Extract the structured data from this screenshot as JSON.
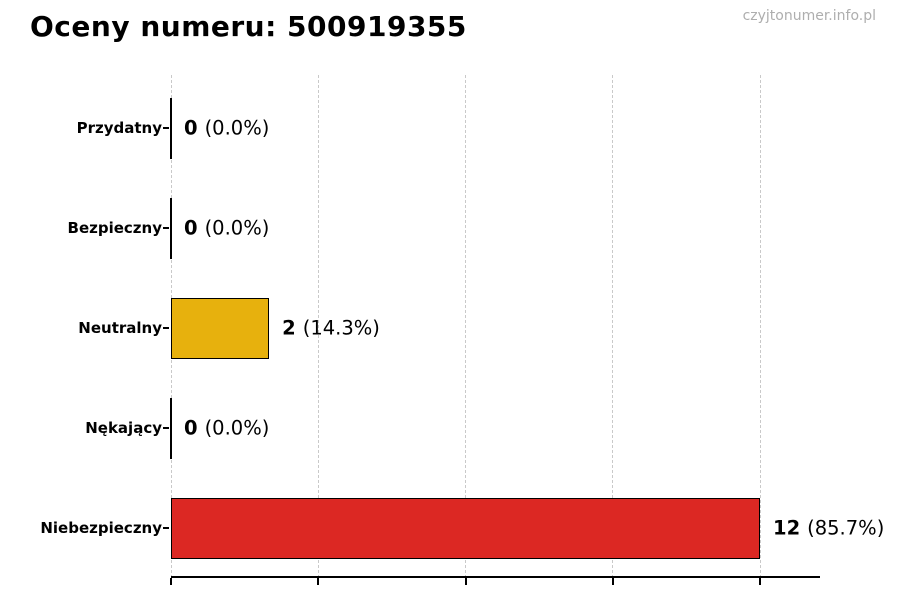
{
  "page": {
    "watermark": "czyjtonumer.info.pl"
  },
  "chart_data": {
    "type": "bar",
    "orientation": "horizontal",
    "title": "Oceny numeru: 500919355",
    "xlabel": "",
    "ylabel": "",
    "categories": [
      "Przydatny",
      "Bezpieczny",
      "Neutralny",
      "Nękający",
      "Niebezpieczny"
    ],
    "values": [
      0,
      0,
      2,
      0,
      12
    ],
    "percents": [
      0.0,
      0.0,
      14.3,
      0.0,
      85.7
    ],
    "percent_labels": [
      "(0.0%)",
      "(0.0%)",
      "(14.3%)",
      "(0.0%)",
      "(85.7%)"
    ],
    "value_labels": [
      "0",
      "0",
      "2",
      "0",
      "12"
    ],
    "bar_colors": [
      "#000000",
      "#000000",
      "#E7B10D",
      "#000000",
      "#DC2823"
    ],
    "bar_edge_color": "#000000",
    "x_ticks": [
      0,
      3,
      6,
      9,
      12
    ],
    "xlim": [
      0,
      13.2
    ],
    "x_tick_labels_visible": false,
    "grid": "vertical-dashed",
    "gridline_color": "#c9c9c9",
    "legend": "none",
    "background_color": "#ffffff"
  }
}
